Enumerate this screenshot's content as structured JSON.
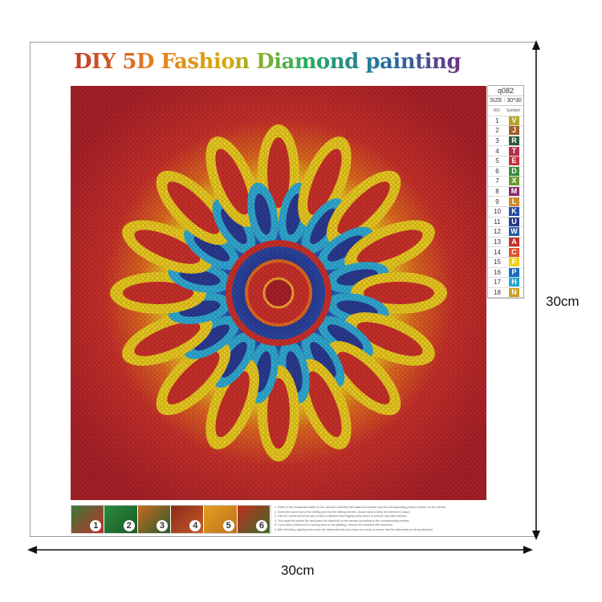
{
  "title": "DIY 5D Fashion Diamond painting",
  "legend": {
    "code": "q082",
    "size": "SIZE : 30*30",
    "col_no": "NO.",
    "col_symbol": "Symbol",
    "rows": [
      {
        "no": "1",
        "symbol": "V",
        "color": "#b5a22a"
      },
      {
        "no": "2",
        "symbol": "J",
        "color": "#a0602a"
      },
      {
        "no": "3",
        "symbol": "R",
        "color": "#2f5a3a"
      },
      {
        "no": "4",
        "symbol": "T",
        "color": "#b0304a"
      },
      {
        "no": "5",
        "symbol": "E",
        "color": "#c8323a"
      },
      {
        "no": "6",
        "symbol": "D",
        "color": "#3a8a3a"
      },
      {
        "no": "7",
        "symbol": "X",
        "color": "#6a9a2a"
      },
      {
        "no": "8",
        "symbol": "M",
        "color": "#8a2a6a"
      },
      {
        "no": "9",
        "symbol": "L",
        "color": "#c88a2a"
      },
      {
        "no": "10",
        "symbol": "K",
        "color": "#2a4aa0"
      },
      {
        "no": "11",
        "symbol": "U",
        "color": "#2a3a8a"
      },
      {
        "no": "12",
        "symbol": "W",
        "color": "#2a5aa0"
      },
      {
        "no": "13",
        "symbol": "A",
        "color": "#c0302a"
      },
      {
        "no": "14",
        "symbol": "C",
        "color": "#e0502a"
      },
      {
        "no": "15",
        "symbol": "F",
        "color": "#f0d020"
      },
      {
        "no": "16",
        "symbol": "P",
        "color": "#1a6ac0"
      },
      {
        "no": "17",
        "symbol": "H",
        "color": "#20a8d0"
      },
      {
        "no": "18",
        "symbol": "N",
        "color": "#c8a020"
      }
    ]
  },
  "steps": [
    "1",
    "2",
    "3",
    "4",
    "5",
    "6"
  ],
  "instructions": [
    "1. Refer to the comparison table on the canvas to identify each diamond number and the corresponding printed number on the canvas.",
    "2. Insert the round end of the drilling pen into the drilling cement. (Avoid hand to keep the cement in place)",
    "3. Use the round end of the pen to stick a diamond and slightly press down to remove any extra cement.",
    "4. Tear apart the partial film and place the diamond on the canvas according to the corresponding number.",
    "5. If you stick a diamond to a wrong area on the painting, remove the diamond with tweezers.",
    "6. After finishing, slightly press down the diamonds with your hand or a book to ensure that the diamonds are firmly attached."
  ],
  "dimensions": {
    "height": "30cm",
    "width": "30cm"
  }
}
